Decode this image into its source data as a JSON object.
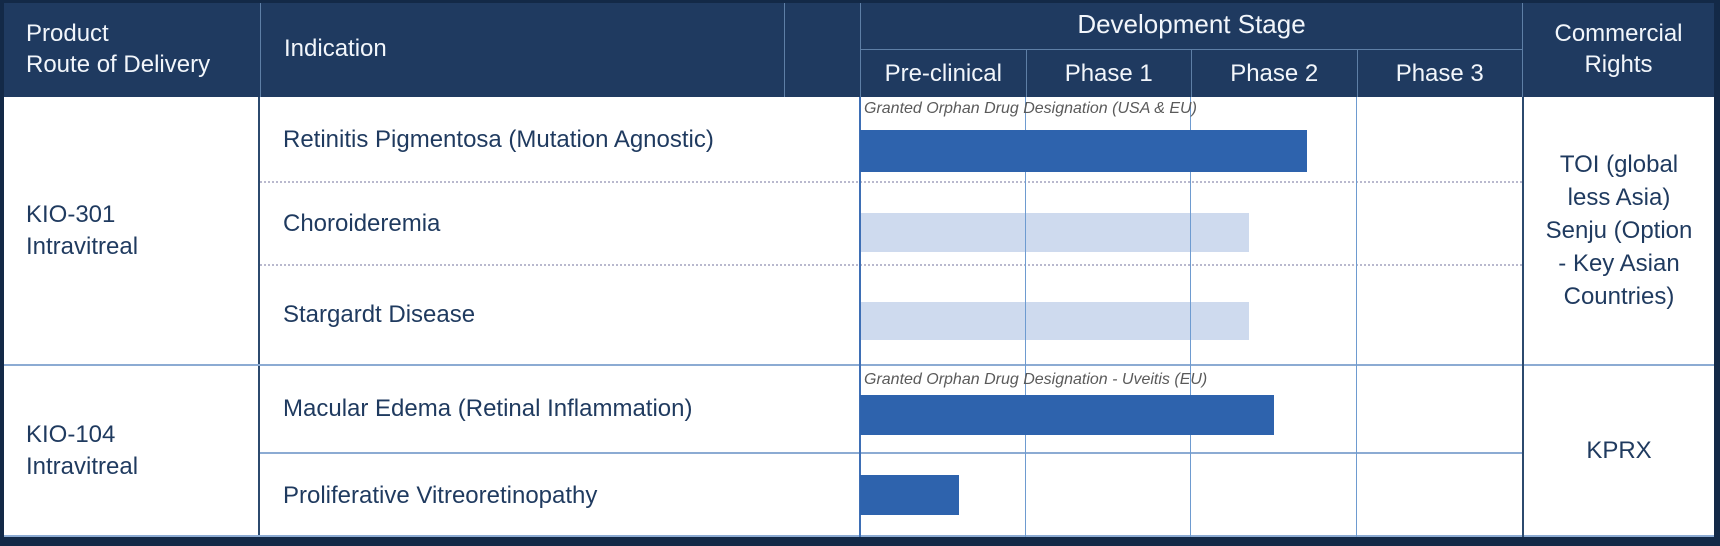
{
  "header": {
    "product": "Product\nRoute of Delivery",
    "indication": "Indication",
    "development_stage": "Development Stage",
    "stages": [
      "Pre-clinical",
      "Phase 1",
      "Phase 2",
      "Phase 3"
    ],
    "commercial": "Commercial\nRights"
  },
  "groups": [
    {
      "product": "KIO-301\nIntravitreal",
      "commercial_rights": "TOI (global\nless Asia)\nSenju (Option\n- Key Asian\nCountries)"
    },
    {
      "product": "KIO-104\nIntravitreal",
      "commercial_rights": "KPRX"
    }
  ],
  "chart_data": {
    "type": "bar",
    "orientation": "horizontal",
    "stage_columns": [
      "Pre-clinical",
      "Phase 1",
      "Phase 2",
      "Phase 3"
    ],
    "xlim_stages": [
      0,
      4
    ],
    "grid": true,
    "series": [
      {
        "product": "KIO-301 Intravitreal",
        "indication": "Retinitis Pigmentosa (Mutation Agnostic)",
        "stages_reached": 2.7,
        "bar_style": "solid",
        "annotation": "Granted Orphan Drug Designation (USA & EU)"
      },
      {
        "product": "KIO-301 Intravitreal",
        "indication": "Choroideremia",
        "stages_reached": 2.35,
        "bar_style": "tentative",
        "annotation": ""
      },
      {
        "product": "KIO-301 Intravitreal",
        "indication": "Stargardt Disease",
        "stages_reached": 2.35,
        "bar_style": "tentative",
        "annotation": ""
      },
      {
        "product": "KIO-104 Intravitreal",
        "indication": "Macular Edema (Retinal Inflammation)",
        "stages_reached": 2.5,
        "bar_style": "solid",
        "annotation": "Granted Orphan Drug Designation - Uveitis (EU)"
      },
      {
        "product": "KIO-104 Intravitreal",
        "indication": "Proliferative Vitreoretinopathy",
        "stages_reached": 0.6,
        "bar_style": "solid",
        "annotation": ""
      }
    ]
  },
  "colors": {
    "header_navy": "#1F3A60",
    "bar_solid": "#2E63AD",
    "bar_tentative": "#CEDAEE",
    "grid_blue": "#6E9BD0",
    "chart_axis_blue": "#3E6FB5",
    "steel_line": "#8CABD3",
    "divider_navy": "#2C4A6E",
    "border_navy": "#132947",
    "text_navy": "#1F3A5F",
    "annotation_gray": "#5A5A5A",
    "dotted_separator": "#B9B9CE"
  }
}
